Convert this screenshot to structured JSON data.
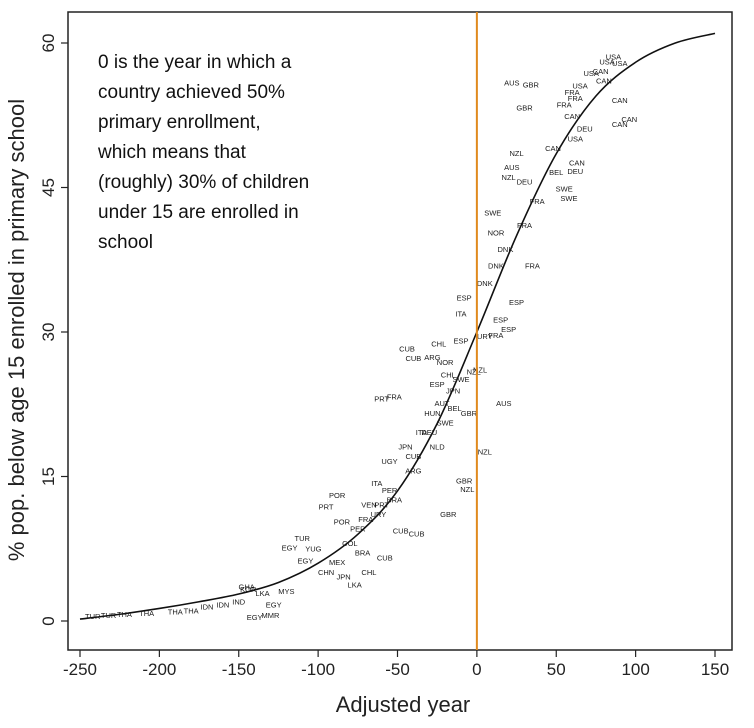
{
  "chart_data": {
    "type": "scatter",
    "title": "",
    "xlabel": "Adjusted year",
    "ylabel": "% pop. below age 15 enrolled in primary school",
    "xlim": [
      -250,
      150
    ],
    "ylim": [
      0,
      60
    ],
    "x_ticks": [
      -250,
      -200,
      -150,
      -100,
      -50,
      0,
      50,
      100,
      150
    ],
    "y_ticks": [
      0,
      15,
      30,
      45,
      60
    ],
    "x_tick_labels": [
      "-250",
      "-200",
      "-150",
      "-100",
      "-50",
      "0",
      "50",
      "100",
      "150"
    ],
    "y_tick_labels": [
      "0",
      "15",
      "30",
      "45",
      "60"
    ],
    "reference_line": {
      "x": 0,
      "color": "#e08a1e"
    },
    "annotation": "0 is the year in which a\ncountry achieved 50%\nprimary enrollment,\nwhich means that\n(roughly) 30% of children\nunder 15 are enrolled in\nschool",
    "fit_curve": {
      "x": [
        -250,
        -225,
        -200,
        -175,
        -150,
        -125,
        -100,
        -75,
        -50,
        -25,
        0,
        25,
        50,
        75,
        100,
        125,
        150
      ],
      "y": [
        0.2,
        0.7,
        1.3,
        2.0,
        2.8,
        4.0,
        6.0,
        9.0,
        13.5,
        20.5,
        30.0,
        40.0,
        48.5,
        54.5,
        58.0,
        60.0,
        61.0
      ]
    },
    "points": [
      {
        "label": "TUR",
        "x": -242,
        "y": 0.4
      },
      {
        "label": "TUR",
        "x": -232,
        "y": 0.5
      },
      {
        "label": "THA",
        "x": -222,
        "y": 0.6
      },
      {
        "label": "THA",
        "x": -208,
        "y": 0.7
      },
      {
        "label": "THA",
        "x": -190,
        "y": 0.9
      },
      {
        "label": "THA",
        "x": -180,
        "y": 1.0
      },
      {
        "label": "IDN",
        "x": -170,
        "y": 1.4
      },
      {
        "label": "IDN",
        "x": -160,
        "y": 1.6
      },
      {
        "label": "IND",
        "x": -150,
        "y": 1.9
      },
      {
        "label": "EGY",
        "x": -140,
        "y": 0.3
      },
      {
        "label": "MMR",
        "x": -130,
        "y": 0.5
      },
      {
        "label": "EGY",
        "x": -128,
        "y": 1.6
      },
      {
        "label": "KOR",
        "x": -144,
        "y": 3.2
      },
      {
        "label": "GHA",
        "x": -145,
        "y": 3.5
      },
      {
        "label": "LKA",
        "x": -135,
        "y": 2.8
      },
      {
        "label": "MYS",
        "x": -120,
        "y": 3.0
      },
      {
        "label": "EGY",
        "x": -118,
        "y": 7.5
      },
      {
        "label": "YUG",
        "x": -103,
        "y": 7.4
      },
      {
        "label": "TUR",
        "x": -110,
        "y": 8.5
      },
      {
        "label": "EGY",
        "x": -108,
        "y": 6.2
      },
      {
        "label": "CHN",
        "x": -95,
        "y": 5.0
      },
      {
        "label": "MEX",
        "x": -88,
        "y": 6.0
      },
      {
        "label": "JPN",
        "x": -84,
        "y": 4.5
      },
      {
        "label": "LKA",
        "x": -77,
        "y": 3.7
      },
      {
        "label": "CHL",
        "x": -68,
        "y": 5.0
      },
      {
        "label": "CUB",
        "x": -58,
        "y": 6.5
      },
      {
        "label": "BRA",
        "x": -72,
        "y": 7.0
      },
      {
        "label": "COL",
        "x": -80,
        "y": 8.0
      },
      {
        "label": "PER",
        "x": -75,
        "y": 9.5
      },
      {
        "label": "POR",
        "x": -85,
        "y": 10.2
      },
      {
        "label": "CUB",
        "x": -48,
        "y": 9.3
      },
      {
        "label": "URY",
        "x": -62,
        "y": 11.0
      },
      {
        "label": "PRT",
        "x": -95,
        "y": 11.8
      },
      {
        "label": "POR",
        "x": -88,
        "y": 13.0
      },
      {
        "label": "ITA",
        "x": -63,
        "y": 14.2
      },
      {
        "label": "BRA",
        "x": -52,
        "y": 12.5
      },
      {
        "label": "VEN",
        "x": -68,
        "y": 12.0
      },
      {
        "label": "PER",
        "x": -55,
        "y": 13.5
      },
      {
        "label": "ARG",
        "x": -40,
        "y": 15.5
      },
      {
        "label": "UGY",
        "x": -55,
        "y": 16.5
      },
      {
        "label": "CUB",
        "x": -40,
        "y": 17.0
      },
      {
        "label": "JPN",
        "x": -45,
        "y": 18.0
      },
      {
        "label": "ITA",
        "x": -35,
        "y": 19.5
      },
      {
        "label": "HUN",
        "x": -28,
        "y": 21.5
      },
      {
        "label": "AUT",
        "x": -22,
        "y": 22.5
      },
      {
        "label": "BEL",
        "x": -14,
        "y": 22.0
      },
      {
        "label": "PRT",
        "x": -60,
        "y": 23.0
      },
      {
        "label": "FRA",
        "x": -52,
        "y": 23.2
      },
      {
        "label": "JPN",
        "x": -15,
        "y": 23.8
      },
      {
        "label": "ESP",
        "x": -25,
        "y": 24.5
      },
      {
        "label": "SWE",
        "x": -10,
        "y": 25.0
      },
      {
        "label": "AUS",
        "x": 17,
        "y": 22.5
      },
      {
        "label": "NZL",
        "x": -2,
        "y": 25.8
      },
      {
        "label": "CHL",
        "x": -18,
        "y": 25.5
      },
      {
        "label": "NOR",
        "x": -20,
        "y": 26.8
      },
      {
        "label": "CUB",
        "x": -44,
        "y": 28.2
      },
      {
        "label": "CUB",
        "x": -40,
        "y": 27.2
      },
      {
        "label": "ARG",
        "x": -28,
        "y": 27.3
      },
      {
        "label": "CHL",
        "x": -24,
        "y": 28.7
      },
      {
        "label": "ESP",
        "x": -10,
        "y": 29.0
      },
      {
        "label": "URY",
        "x": 5,
        "y": 29.5
      },
      {
        "label": "FRA",
        "x": 12,
        "y": 29.6
      },
      {
        "label": "ESP",
        "x": 20,
        "y": 30.2
      },
      {
        "label": "ESP",
        "x": 15,
        "y": 31.2
      },
      {
        "label": "ITA",
        "x": -10,
        "y": 31.8
      },
      {
        "label": "ESP",
        "x": 25,
        "y": 33.0
      },
      {
        "label": "ESP",
        "x": -8,
        "y": 33.5
      },
      {
        "label": "DNK",
        "x": 5,
        "y": 35.0
      },
      {
        "label": "DNK",
        "x": 12,
        "y": 36.8
      },
      {
        "label": "FRA",
        "x": 35,
        "y": 36.8
      },
      {
        "label": "DNK",
        "x": 18,
        "y": 38.5
      },
      {
        "label": "NOR",
        "x": 12,
        "y": 40.2
      },
      {
        "label": "FRA",
        "x": 30,
        "y": 41.0
      },
      {
        "label": "SWE",
        "x": 10,
        "y": 42.3
      },
      {
        "label": "FRA",
        "x": 38,
        "y": 43.5
      },
      {
        "label": "SWE",
        "x": 58,
        "y": 43.8
      },
      {
        "label": "SWE",
        "x": 55,
        "y": 44.8
      },
      {
        "label": "NZL",
        "x": 20,
        "y": 46.0
      },
      {
        "label": "AUS",
        "x": 22,
        "y": 47.0
      },
      {
        "label": "DEU",
        "x": 30,
        "y": 45.5
      },
      {
        "label": "NZL",
        "x": 25,
        "y": 48.5
      },
      {
        "label": "BEL",
        "x": 50,
        "y": 46.5
      },
      {
        "label": "DEU",
        "x": 62,
        "y": 46.6
      },
      {
        "label": "CAN",
        "x": 48,
        "y": 49.0
      },
      {
        "label": "CAN",
        "x": 63,
        "y": 47.5
      },
      {
        "label": "USA",
        "x": 62,
        "y": 50.0
      },
      {
        "label": "DEU",
        "x": 68,
        "y": 51.0
      },
      {
        "label": "CAN",
        "x": 60,
        "y": 52.3
      },
      {
        "label": "FRA",
        "x": 55,
        "y": 53.5
      },
      {
        "label": "GBR",
        "x": 30,
        "y": 53.2
      },
      {
        "label": "USA",
        "x": 65,
        "y": 55.5
      },
      {
        "label": "CAN",
        "x": 90,
        "y": 54.0
      },
      {
        "label": "CAN",
        "x": 96,
        "y": 52.0
      },
      {
        "label": "CAN",
        "x": 90,
        "y": 51.5
      },
      {
        "label": "FRA",
        "x": 62,
        "y": 54.2
      },
      {
        "label": "FRA",
        "x": 60,
        "y": 54.8
      },
      {
        "label": "AUS",
        "x": 22,
        "y": 55.8
      },
      {
        "label": "GBR",
        "x": 34,
        "y": 55.6
      },
      {
        "label": "CAN",
        "x": 80,
        "y": 56.0
      },
      {
        "label": "USA",
        "x": 72,
        "y": 56.8
      },
      {
        "label": "CAN",
        "x": 78,
        "y": 57.0
      },
      {
        "label": "USA",
        "x": 82,
        "y": 58.0
      },
      {
        "label": "USA",
        "x": 86,
        "y": 58.5
      },
      {
        "label": "USA",
        "x": 90,
        "y": 57.8
      },
      {
        "label": "CUB",
        "x": -38,
        "y": 9.0
      },
      {
        "label": "FRA",
        "x": -70,
        "y": 10.5
      },
      {
        "label": "PRT",
        "x": -60,
        "y": 12.0
      },
      {
        "label": "SWE",
        "x": -20,
        "y": 20.5
      },
      {
        "label": "NLD",
        "x": -25,
        "y": 18.0
      },
      {
        "label": "DEU",
        "x": -30,
        "y": 19.5
      },
      {
        "label": "GBR",
        "x": -5,
        "y": 21.5
      },
      {
        "label": "NZL",
        "x": 5,
        "y": 17.5
      },
      {
        "label": "GBR",
        "x": -8,
        "y": 14.5
      },
      {
        "label": "NZL",
        "x": -6,
        "y": 13.6
      },
      {
        "label": "GBR",
        "x": -18,
        "y": 11.0
      },
      {
        "label": "NZL",
        "x": 2,
        "y": 26.0
      }
    ]
  }
}
